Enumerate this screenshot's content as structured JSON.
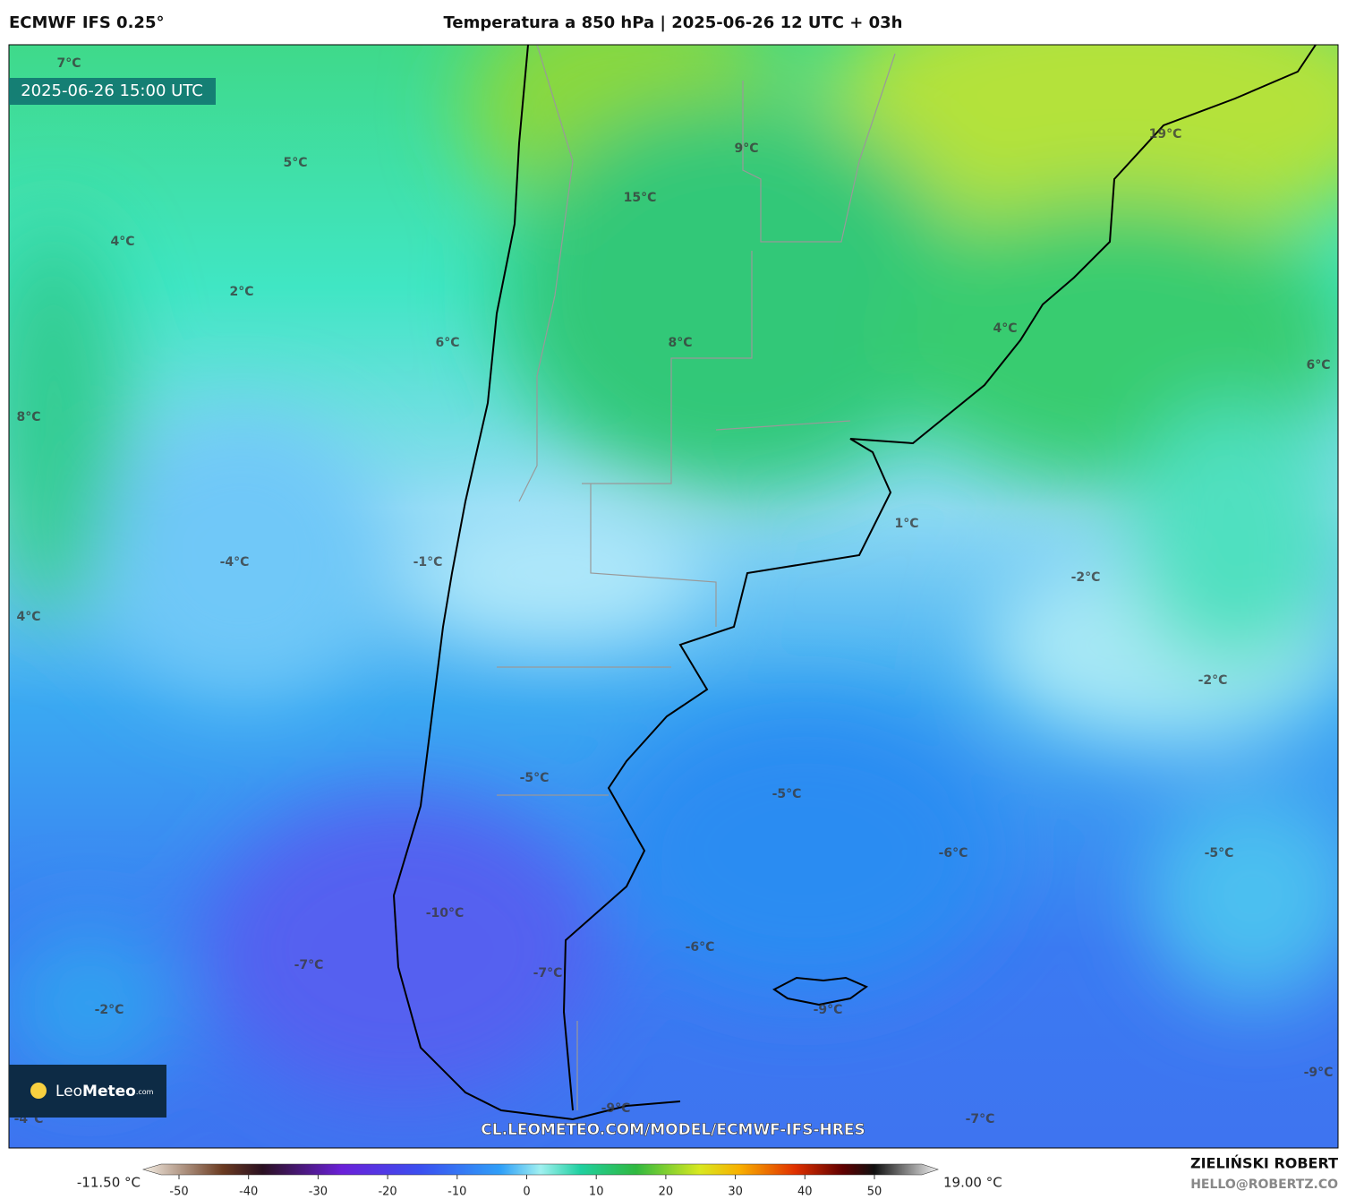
{
  "header": {
    "model": "ECMWF IFS 0.25°",
    "title": "Temperatura a 850 hPa | 2025-06-26 12 UTC + 03h"
  },
  "map": {
    "valid_time": "2025-06-26 15:00 UTC",
    "labels": [
      "7°C",
      "5°C",
      "4°C",
      "2°C",
      "6°C",
      "8°C",
      "15°C",
      "9°C",
      "19°C",
      "4°C",
      "6°C",
      "8°C",
      "1°C",
      "-2°C",
      "-4°C",
      "-1°C",
      "4°C",
      "-2°C",
      "-5°C",
      "-5°C",
      "-6°C",
      "-5°C",
      "-10°C",
      "-7°C",
      "-6°C",
      "-7°C",
      "-2°C",
      "-9°C",
      "-9°C",
      "-7°C",
      "-9°C",
      "-4°C"
    ],
    "watermark": "CL.LEOMETEO.COM/MODEL/ECMWF-IFS-HRES",
    "logo": {
      "name_light": "Leo",
      "name_bold": "Meteo",
      "suffix": ".com"
    }
  },
  "colorbar": {
    "min_label": "-11.50 °C",
    "max_label": "19.00 °C",
    "ticks": [
      -50,
      -40,
      -30,
      -20,
      -10,
      0,
      10,
      20,
      30,
      40,
      50
    ]
  },
  "footer": {
    "author": "ZIELIŃSKI ROBERT",
    "contact": "HELLO@ROBERTZ.CO"
  }
}
